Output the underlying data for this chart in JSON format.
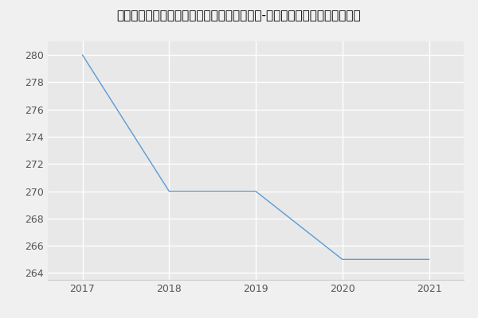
{
  "title": "西安电子科技大学通信工程学院军队指挥学（-历年复试）研究生录取分数线",
  "x": [
    2017,
    2018,
    2019,
    2020,
    2021
  ],
  "y": [
    280,
    270,
    270,
    265,
    265
  ],
  "line_color": "#5b9bd5",
  "bg_color": "#f0f0f0",
  "plot_bg_color": "#e8e8e8",
  "ylim": [
    263.5,
    281
  ],
  "xlim": [
    2016.6,
    2021.4
  ],
  "yticks": [
    264,
    266,
    268,
    270,
    272,
    274,
    276,
    278,
    280
  ],
  "xticks": [
    2017,
    2018,
    2019,
    2020,
    2021
  ],
  "title_fontsize": 11,
  "tick_fontsize": 9,
  "tick_color": "#555555"
}
